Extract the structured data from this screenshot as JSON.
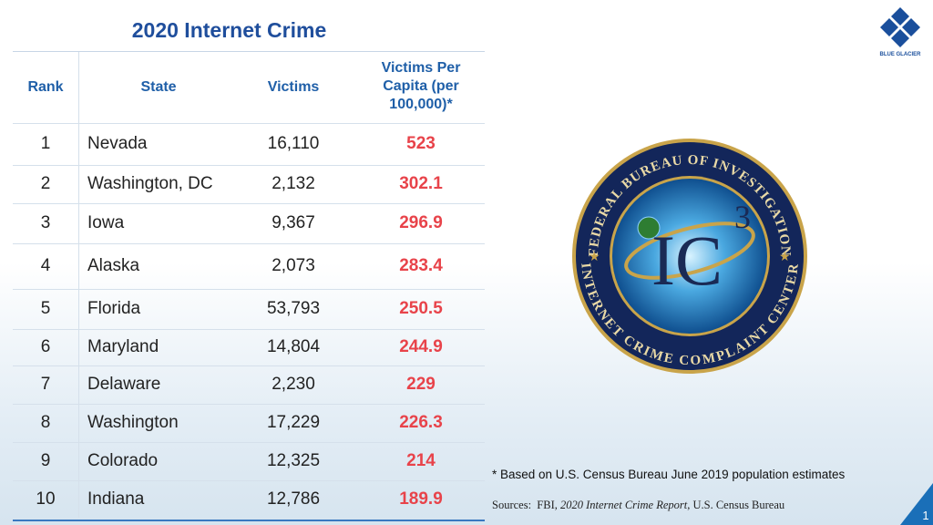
{
  "title": "2020 Internet Crime",
  "table": {
    "headers": [
      "Rank",
      "State",
      "Victims",
      "Victims Per Capita (per 100,000)*"
    ],
    "rows": [
      [
        "1",
        "Nevada",
        "16,110",
        "523"
      ],
      [
        "2",
        "Washington, DC",
        "2,132",
        "302.1"
      ],
      [
        "3",
        "Iowa",
        "9,367",
        "296.9"
      ],
      [
        "4",
        "Alaska",
        "2,073",
        "283.4"
      ],
      [
        "5",
        "Florida",
        "53,793",
        "250.5"
      ],
      [
        "6",
        "Maryland",
        "14,804",
        "244.9"
      ],
      [
        "7",
        "Delaware",
        "2,230",
        "229"
      ],
      [
        "8",
        "Washington",
        "17,229",
        "226.3"
      ],
      [
        "9",
        "Colorado",
        "12,325",
        "214"
      ],
      [
        "10",
        "Indiana",
        "12,786",
        "189.9"
      ]
    ]
  },
  "seal": {
    "top": "FEDERAL BUREAU OF INVESTIGATION",
    "bottom": "INTERNET CRIME COMPLAINT CENTER",
    "center": "IC",
    "superscript": "3"
  },
  "footnote": "* Based on U.S. Census Bureau June 2019 population estimates",
  "sources": {
    "lead": "Sources:  FBI, ",
    "italic": "2020 Internet Crime Report",
    "tail": ", U.S. Census Bureau"
  },
  "logo": "BLUE GLACIER",
  "page_number": "1"
}
